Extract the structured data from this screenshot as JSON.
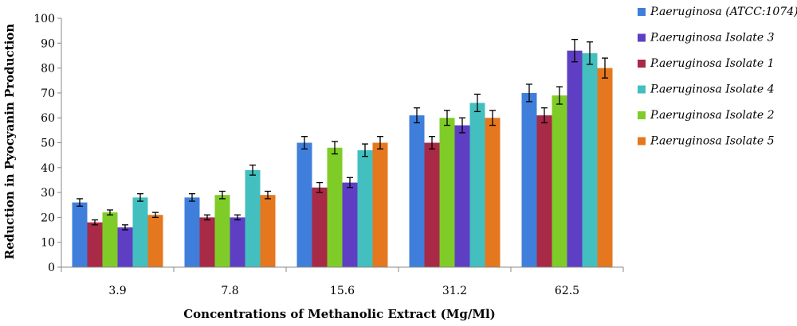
{
  "chart_data": {
    "type": "bar",
    "xlabel": "Concentrations of Methanolic Extract (Mg/Ml)",
    "ylabel": "Reduction in Pyocyanin Production",
    "ylim": [
      0,
      100
    ],
    "yticks": [
      0,
      10,
      20,
      30,
      40,
      50,
      60,
      70,
      80,
      90,
      100
    ],
    "grid": false,
    "legend_position": "right",
    "error_bars": true,
    "categories": [
      "3.9",
      "7.8",
      "15.6",
      "31.2",
      "62.5"
    ],
    "series": [
      {
        "name": "P.aeruginosa (ATCC:1074)",
        "color": "#3F7FDB",
        "values": [
          26,
          28,
          50,
          61,
          70
        ],
        "errors": [
          1.5,
          1.5,
          2.5,
          3,
          3.5
        ]
      },
      {
        "name": "P.aeruginosa Isolate 1",
        "color": "#A82A46",
        "values": [
          18,
          20,
          32,
          50,
          61
        ],
        "errors": [
          1,
          1,
          2,
          2.5,
          3
        ]
      },
      {
        "name": "P.aeruginosa Isolate 2",
        "color": "#7FCC28",
        "values": [
          22,
          29,
          48,
          60,
          69
        ],
        "errors": [
          1,
          1.5,
          2.5,
          3,
          3.5
        ]
      },
      {
        "name": "P.aeruginosa Isolate 3",
        "color": "#5E3FC4",
        "values": [
          16,
          20,
          34,
          57,
          87
        ],
        "errors": [
          1,
          1,
          2,
          3,
          4.5
        ]
      },
      {
        "name": "P.aeruginosa Isolate 4",
        "color": "#44BFBF",
        "values": [
          28,
          39,
          47,
          66,
          86
        ],
        "errors": [
          1.5,
          2,
          2.5,
          3.5,
          4.5
        ]
      },
      {
        "name": "P.aeruginosa Isolate 5",
        "color": "#E5771F",
        "values": [
          21,
          29,
          50,
          60,
          80
        ],
        "errors": [
          1,
          1.5,
          2.5,
          3,
          4
        ]
      }
    ],
    "legend_order": [
      "P.aeruginosa (ATCC:1074)",
      "P.aeruginosa Isolate 3",
      "P.aeruginosa Isolate 1",
      "P.aeruginosa Isolate 4",
      "P.aeruginosa Isolate 2",
      "P.aeruginosa Isolate 5"
    ]
  }
}
